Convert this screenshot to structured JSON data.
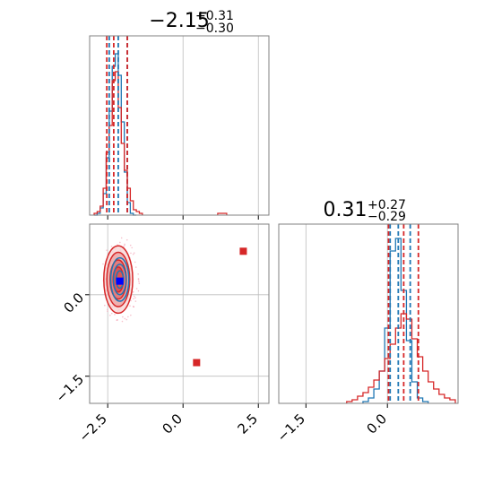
{
  "chart_data": [
    {
      "panel": "x-marginal",
      "type": "histogram",
      "title": {
        "value": "−2.15",
        "sup": "+0.31",
        "sub": "−0.30"
      },
      "xlim": [
        -3.1,
        2.85
      ],
      "ylim": [
        0,
        1.0
      ],
      "colors": {
        "series_a": "#1f77b4",
        "series_b": "#d62728"
      },
      "quantiles": {
        "series_a": [
          -2.45,
          -2.15,
          -1.85
        ],
        "series_b": [
          -2.53,
          -2.3,
          -1.85
        ]
      },
      "series": [
        {
          "color_key": "series_a",
          "x": [
            -2.9,
            -2.8,
            -2.7,
            -2.6,
            -2.5,
            -2.4,
            -2.3,
            -2.2,
            -2.1,
            -2.0,
            -1.9,
            -1.8,
            -1.7,
            -1.6
          ],
          "values": [
            0,
            0.01,
            0.04,
            0.12,
            0.32,
            0.58,
            0.83,
            0.9,
            0.78,
            0.52,
            0.24,
            0.07,
            0.01,
            0
          ]
        },
        {
          "color_key": "series_b",
          "x": [
            -2.9,
            -2.8,
            -2.7,
            -2.6,
            -2.5,
            -2.4,
            -2.3,
            -2.2,
            -2.1,
            -2.0,
            -1.9,
            -1.8,
            -1.7,
            -1.6,
            -1.5,
            -1.4
          ],
          "values": [
            0.01,
            0.02,
            0.05,
            0.15,
            0.35,
            0.5,
            0.75,
            0.8,
            0.6,
            0.4,
            0.25,
            0.15,
            0.08,
            0.03,
            0.02,
            0.01
          ]
        }
      ]
    },
    {
      "panel": "joint",
      "type": "scatter",
      "xlim": [
        -3.1,
        2.85
      ],
      "ylim": [
        -2.0,
        1.3
      ],
      "xticks": [
        "−2.5",
        "0.0",
        "2.5"
      ],
      "yticks": [
        "0.0",
        "−1.5"
      ],
      "contours": [
        {
          "color_key": "series_b",
          "center": [
            -2.15,
            0.28
          ],
          "radii": [
            [
              0.48,
              0.62
            ],
            [
              0.38,
              0.5
            ],
            [
              0.27,
              0.36
            ],
            [
              0.17,
              0.23
            ]
          ]
        },
        {
          "color_key": "series_a",
          "center": [
            -2.1,
            0.28
          ],
          "radii": [
            [
              0.3,
              0.4
            ],
            [
              0.21,
              0.28
            ],
            [
              0.12,
              0.16
            ]
          ]
        }
      ],
      "points": [
        {
          "x": 2.0,
          "y": 0.8,
          "color_key": "series_b",
          "marker": "square"
        },
        {
          "x": 0.45,
          "y": -1.25,
          "color_key": "series_b",
          "marker": "square"
        },
        {
          "x": -2.1,
          "y": 0.25,
          "color": "#0000ff",
          "marker": "square"
        }
      ]
    },
    {
      "panel": "y-marginal",
      "type": "histogram",
      "title": {
        "value": "0.31",
        "sup": "+0.27",
        "sub": "−0.29"
      },
      "xlim": [
        -2.0,
        1.3
      ],
      "ylim": [
        0,
        1.0
      ],
      "xticks": [
        "−1.5",
        "0.0"
      ],
      "quantiles": {
        "series_a": [
          0.05,
          0.2,
          0.42
        ],
        "series_b": [
          0.02,
          0.3,
          0.57
        ]
      },
      "series": [
        {
          "color_key": "series_a",
          "x": [
            -0.4,
            -0.3,
            -0.2,
            -0.1,
            0.0,
            0.1,
            0.2,
            0.3,
            0.4,
            0.5,
            0.6,
            0.7
          ],
          "values": [
            0.01,
            0.03,
            0.08,
            0.18,
            0.42,
            0.85,
            0.92,
            0.63,
            0.35,
            0.12,
            0.03,
            0.01
          ]
        },
        {
          "color_key": "series_b",
          "x": [
            -0.7,
            -0.6,
            -0.5,
            -0.4,
            -0.3,
            -0.2,
            -0.1,
            0.0,
            0.1,
            0.2,
            0.3,
            0.4,
            0.5,
            0.6,
            0.7,
            0.8,
            0.9,
            1.0,
            1.1,
            1.2
          ],
          "values": [
            0.01,
            0.02,
            0.04,
            0.06,
            0.09,
            0.13,
            0.18,
            0.25,
            0.33,
            0.42,
            0.5,
            0.47,
            0.36,
            0.26,
            0.18,
            0.12,
            0.08,
            0.05,
            0.03,
            0.02
          ]
        }
      ]
    }
  ]
}
